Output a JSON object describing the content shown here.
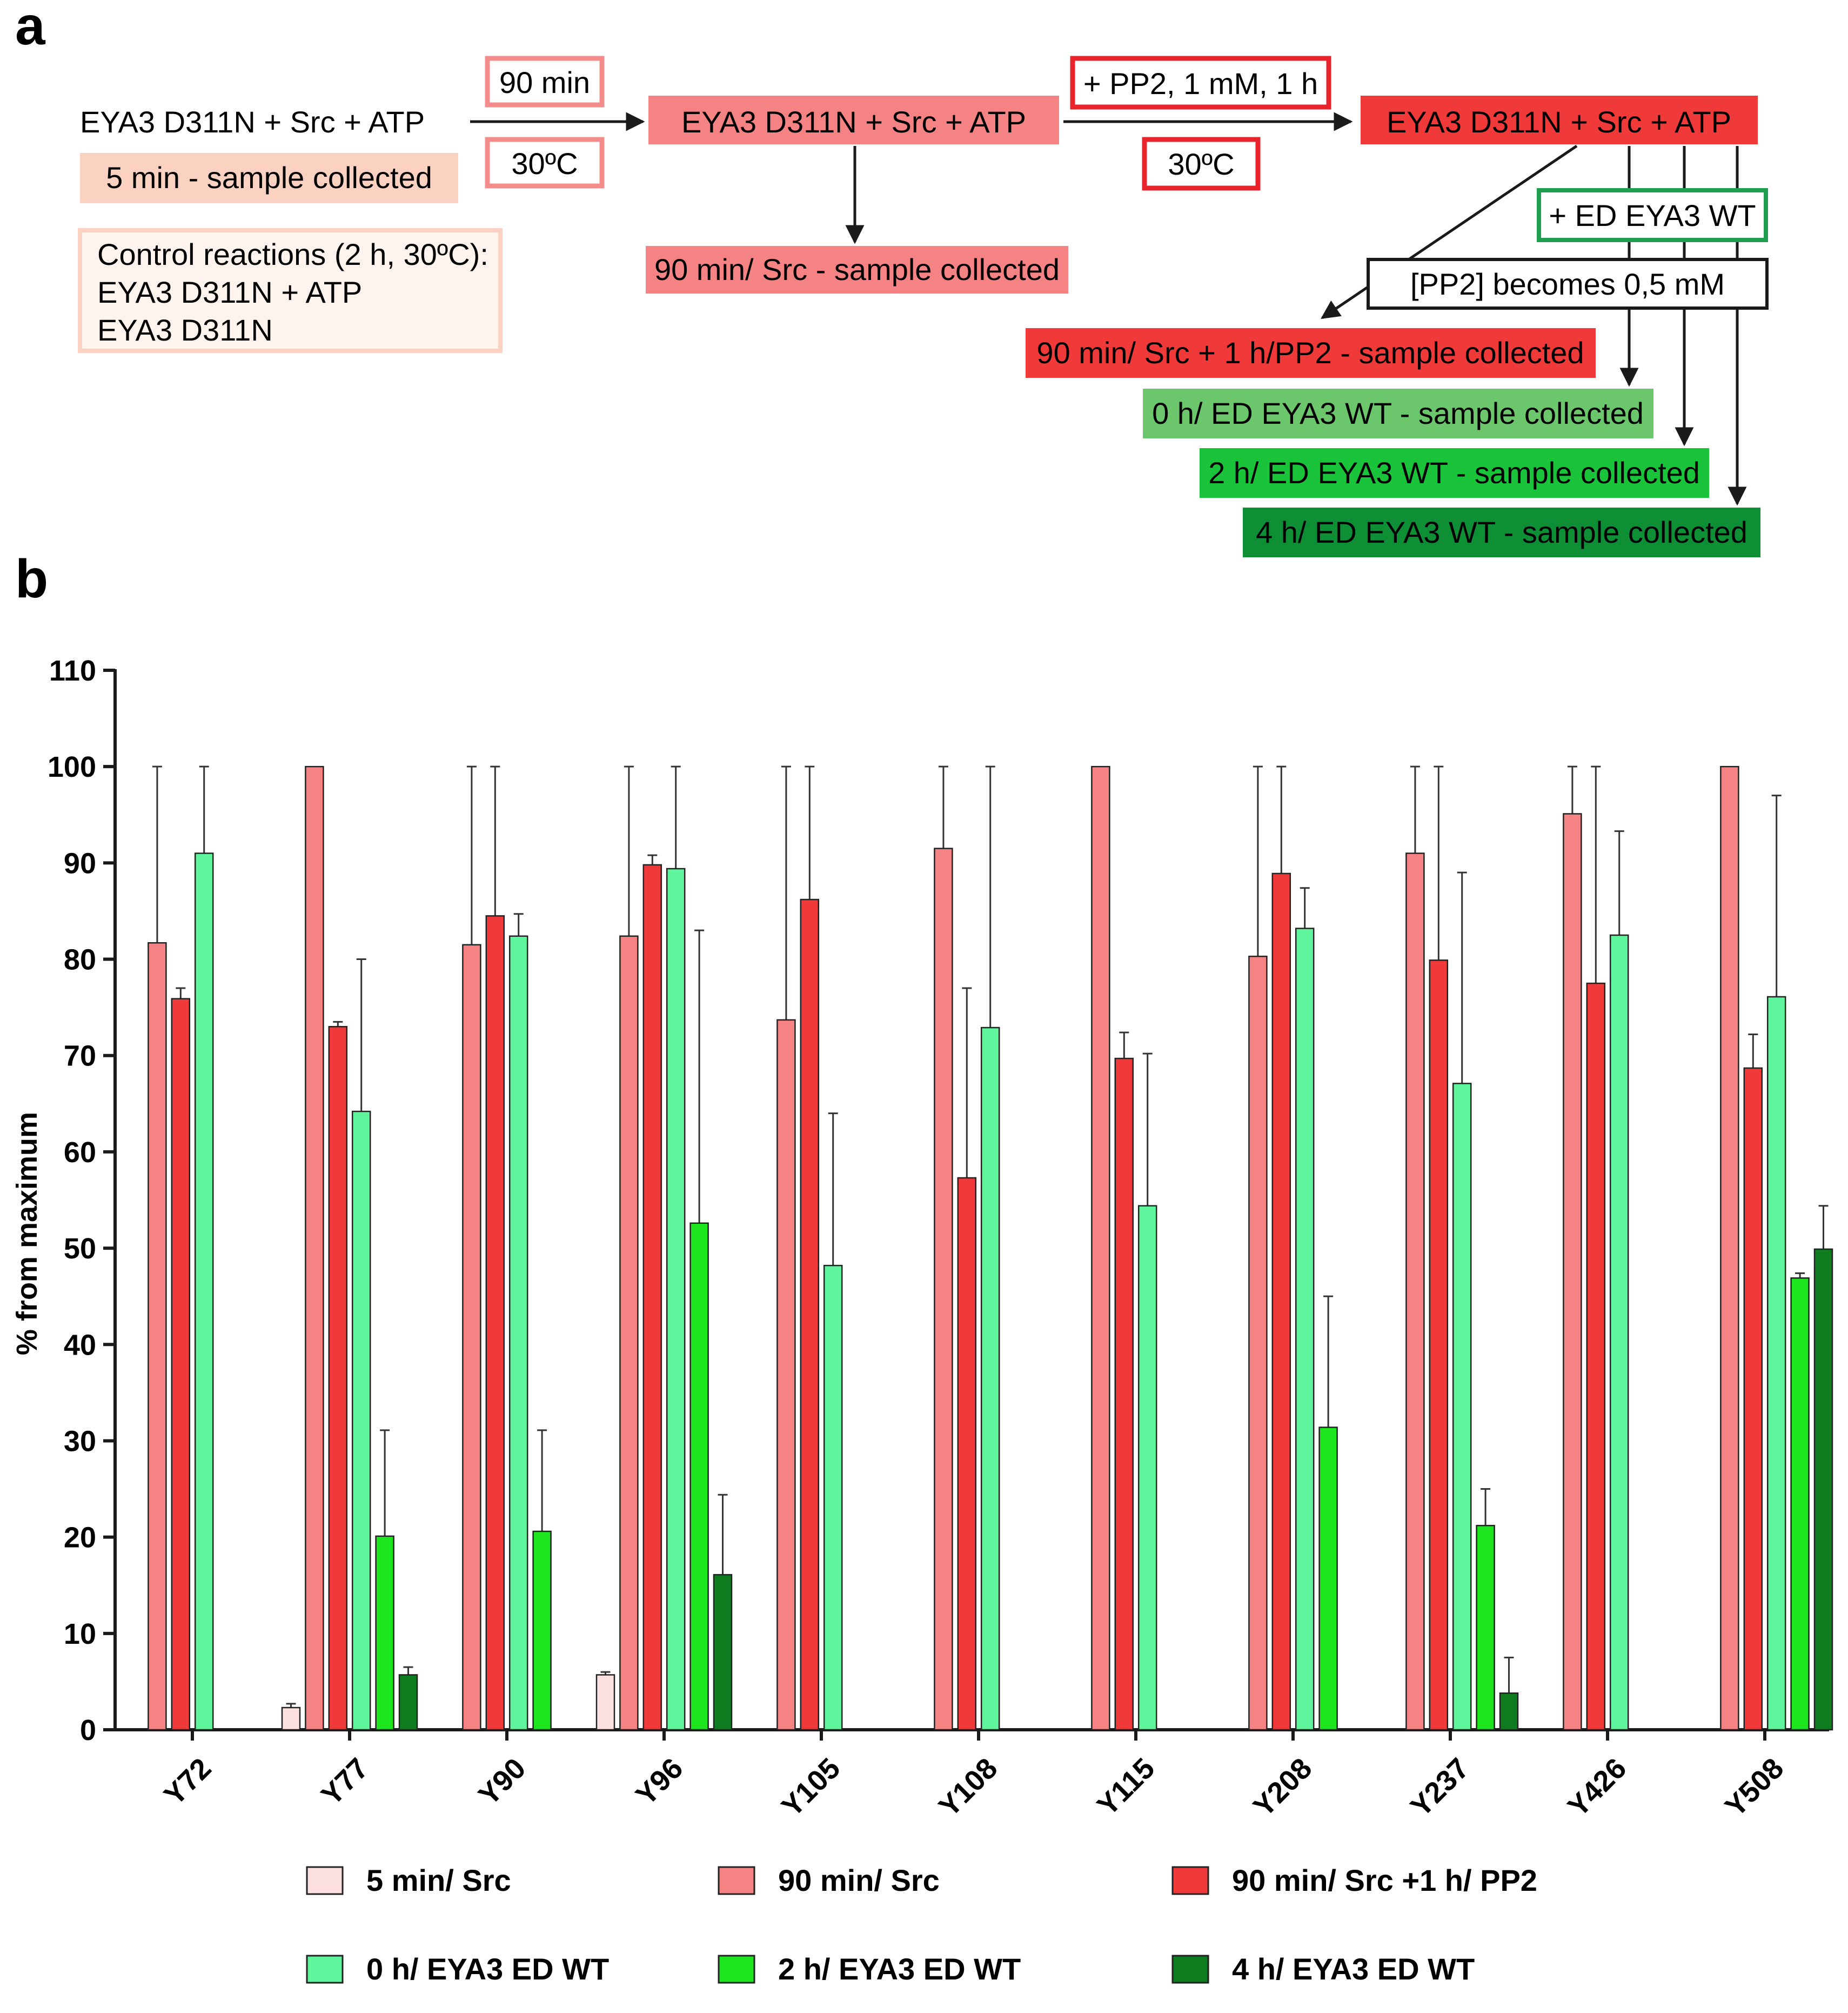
{
  "panels": {
    "a": "a",
    "b": "b"
  },
  "colors": {
    "c5min": "#fde0e0",
    "c90": "#f58383",
    "cpp2": "#f03a3a",
    "c0h": "#5ef59c",
    "c2h": "#1ee61e",
    "c4h": "#0e7c1f",
    "box_light_salmon": "#fbd2c2",
    "box_salmon": "#f58383",
    "box_red": "#f03a3a",
    "box_light_green": "#6cc66c",
    "box_green": "#19c43a",
    "box_dark_green": "#0e8f35",
    "border_red": "#e8232b",
    "border_green": "#1e9e4e",
    "border_salmon": "#f48c8c"
  },
  "schema": {
    "start_text": "EYA3 D311N + Src + ATP",
    "start_sample": "5 min - sample collected",
    "control_title": "Control reactions (2 h, 30ºC):",
    "control_line1": "EYA3 D311N + ATP",
    "control_line2": "EYA3 D311N",
    "step1_time": "90 min",
    "step1_temp": "30ºC",
    "mid_text": "EYA3 D311N + Src + ATP",
    "mid_sample": "90 min/ Src - sample collected",
    "step2_add": "+ PP2, 1 mM, 1 h",
    "step2_temp": "30ºC",
    "end_text": "EYA3 D311N + Src + ATP",
    "add_ed": "+ ED EYA3 WT",
    "pp2_note": "[PP2] becomes 0,5 mM",
    "sample_pp2": "90 min/ Src + 1 h/PP2 - sample collected",
    "sample_0h": "0 h/ ED EYA3 WT - sample collected",
    "sample_2h": "2 h/ ED EYA3 WT - sample collected",
    "sample_4h": "4 h/ ED EYA3 WT - sample collected"
  },
  "chart_data": {
    "type": "bar",
    "title": "",
    "xlabel": "",
    "ylabel": "% from maximum",
    "ylim": [
      0,
      110
    ],
    "yticks": [
      0,
      10,
      20,
      30,
      40,
      50,
      60,
      70,
      80,
      90,
      100,
      110
    ],
    "categories": [
      "Y72",
      "Y77",
      "Y90",
      "Y96",
      "Y105",
      "Y108",
      "Y115",
      "Y208",
      "Y237",
      "Y426",
      "Y508"
    ],
    "series": [
      {
        "name": "5 min/ Src",
        "color": "#fde0e0",
        "values": [
          null,
          2.3,
          null,
          5.7,
          null,
          null,
          null,
          null,
          null,
          null,
          null
        ],
        "errors": [
          null,
          0.4,
          null,
          0.3,
          null,
          null,
          null,
          null,
          null,
          null,
          null
        ]
      },
      {
        "name": "90 min/ Src",
        "color": "#f58383",
        "values": [
          81.7,
          100,
          81.5,
          82.4,
          73.7,
          91.5,
          100,
          80.3,
          91,
          95.1,
          100
        ],
        "errors": [
          18.3,
          null,
          18.5,
          17.6,
          26.3,
          8.5,
          null,
          19.7,
          9,
          4.9,
          null
        ]
      },
      {
        "name": "90 min/ Src +1 h/ PP2",
        "color": "#f03a3a",
        "values": [
          75.9,
          73,
          84.5,
          89.8,
          86.2,
          57.3,
          69.7,
          88.9,
          79.9,
          77.5,
          68.7
        ],
        "errors": [
          1.1,
          0.5,
          15.5,
          1,
          13.8,
          19.7,
          2.7,
          11.1,
          20.1,
          22.5,
          3.5
        ]
      },
      {
        "name": "0 h/ EYA3 ED WT",
        "color": "#5ef59c",
        "values": [
          91,
          64.2,
          82.4,
          89.4,
          48.2,
          72.9,
          54.4,
          83.2,
          67.1,
          82.5,
          76.1
        ],
        "errors": [
          9,
          15.8,
          2.3,
          10.6,
          15.8,
          27.1,
          15.8,
          4.2,
          21.9,
          10.8,
          20.9
        ]
      },
      {
        "name": "2 h/ EYA3 ED WT",
        "color": "#1ee61e",
        "values": [
          null,
          20.1,
          20.6,
          52.6,
          null,
          null,
          null,
          31.4,
          21.2,
          null,
          46.9
        ],
        "errors": [
          null,
          11,
          10.5,
          30.4,
          null,
          null,
          null,
          13.6,
          3.8,
          null,
          0.5
        ]
      },
      {
        "name": "4 h/ EYA3 ED WT",
        "color": "#0e7c1f",
        "values": [
          null,
          5.7,
          null,
          16.1,
          null,
          null,
          null,
          null,
          3.8,
          null,
          49.9
        ],
        "errors": [
          null,
          0.8,
          null,
          8.3,
          null,
          null,
          null,
          null,
          3.7,
          null,
          4.5
        ]
      }
    ],
    "legend_position": "bottom"
  },
  "legend": {
    "items": [
      {
        "label": "5 min/ Src",
        "color": "#fde0e0"
      },
      {
        "label": "90 min/ Src",
        "color": "#f58383"
      },
      {
        "label": "90 min/ Src +1 h/ PP2",
        "color": "#f03a3a"
      },
      {
        "label": "0 h/ EYA3 ED WT",
        "color": "#5ef59c"
      },
      {
        "label": "2 h/ EYA3 ED WT",
        "color": "#1ee61e"
      },
      {
        "label": "4 h/ EYA3 ED WT",
        "color": "#0e7c1f"
      }
    ]
  }
}
